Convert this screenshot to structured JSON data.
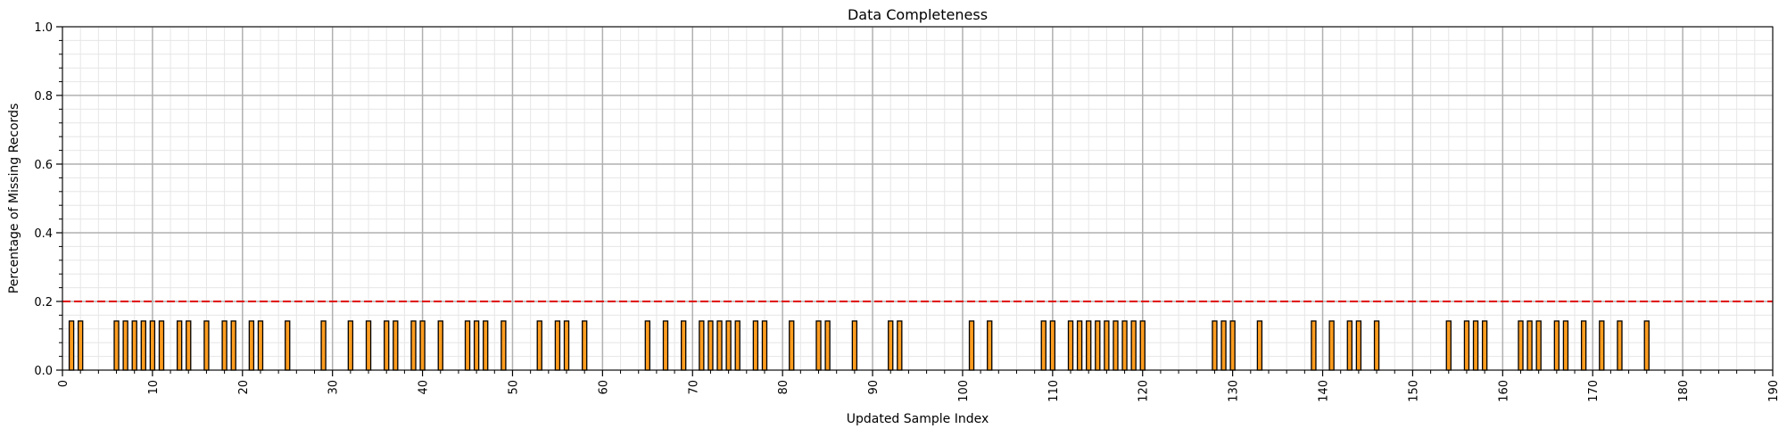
{
  "chart_data": {
    "type": "bar",
    "title": "Data Completeness",
    "xlabel": "Updated Sample Index",
    "ylabel": "Percentage of Missing Records",
    "xlim": [
      0,
      190
    ],
    "ylim": [
      0,
      1.0
    ],
    "x_ticks": [
      "0",
      "10",
      "20",
      "30",
      "40",
      "50",
      "60",
      "70",
      "80",
      "90",
      "100",
      "110",
      "120",
      "130",
      "140",
      "150",
      "160",
      "170",
      "180",
      "190"
    ],
    "y_ticks": [
      "0.0",
      "0.2",
      "0.4",
      "0.6",
      "0.8",
      "1.0"
    ],
    "grid": true,
    "threshold": 0.2,
    "bar_value": 0.143,
    "bar_indices": [
      1,
      2,
      6,
      7,
      8,
      9,
      10,
      11,
      13,
      14,
      16,
      18,
      19,
      21,
      22,
      25,
      29,
      32,
      34,
      36,
      37,
      39,
      40,
      42,
      45,
      46,
      47,
      49,
      53,
      55,
      56,
      58,
      65,
      67,
      69,
      71,
      72,
      73,
      74,
      75,
      77,
      78,
      81,
      84,
      85,
      88,
      92,
      93,
      101,
      103,
      109,
      110,
      112,
      113,
      114,
      115,
      116,
      117,
      118,
      119,
      120,
      128,
      129,
      130,
      133,
      139,
      141,
      143,
      144,
      146,
      154,
      156,
      157,
      158,
      162,
      163,
      164,
      166,
      167,
      169,
      171,
      173,
      176
    ],
    "colors": {
      "bar_fill": "#FF9D1F",
      "bar_edge": "#000000",
      "threshold_line": "#E00000",
      "grid_major": "#B0B0B0",
      "grid_minor": "#E6E6E6"
    }
  }
}
